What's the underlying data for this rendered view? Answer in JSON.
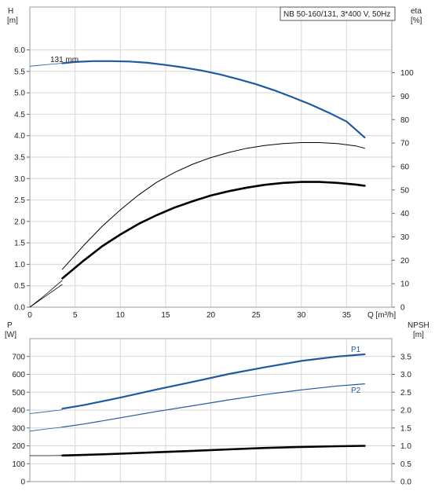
{
  "chart_data": [
    {
      "type": "line",
      "title": "NB 50-160/131, 3*400 V, 50Hz",
      "xlabel": "Q [m³/h]",
      "ylabel": "H\n[m]",
      "ylabel_right": "eta\n[%]",
      "xlim": [
        0,
        40
      ],
      "ylim": [
        0,
        7.0
      ],
      "ylim_right": [
        0,
        128
      ],
      "x_ticks": [
        "0",
        "5",
        "10",
        "15",
        "20",
        "25",
        "30",
        "35"
      ],
      "y_ticks": [
        "0.0",
        "0.5",
        "1.0",
        "1.5",
        "2.0",
        "2.5",
        "3.0",
        "3.5",
        "4.0",
        "4.5",
        "5.0",
        "5.5",
        "6.0"
      ],
      "y_right_ticks": [
        "0",
        "10",
        "20",
        "30",
        "40",
        "50",
        "60",
        "70",
        "80",
        "90",
        "100"
      ],
      "grid": true,
      "series": [
        {
          "name": "131 mm",
          "axis": "left",
          "color": "#1e5aa0",
          "thin_x": [
            0,
            1,
            2,
            3.6
          ],
          "thin_y": [
            5.62,
            5.64,
            5.66,
            5.69
          ],
          "x": [
            3.6,
            5,
            7,
            9,
            11,
            13,
            15,
            17,
            19,
            21,
            23,
            25,
            27,
            29,
            31,
            33,
            35,
            37
          ],
          "y": [
            5.69,
            5.72,
            5.74,
            5.74,
            5.73,
            5.7,
            5.65,
            5.59,
            5.52,
            5.43,
            5.32,
            5.2,
            5.06,
            4.9,
            4.73,
            4.54,
            4.33,
            3.96
          ]
        },
        {
          "name": "",
          "axis": "right",
          "color": "#000000",
          "stroke_width": 1,
          "thin_x": [
            0,
            1,
            2,
            3,
            3.6
          ],
          "thin_y": [
            0,
            3.0,
            6.2,
            9.5,
            11.5
          ],
          "x": [
            3.6,
            6,
            8,
            10,
            12,
            14,
            16,
            18,
            20,
            22,
            24,
            26,
            28,
            30,
            32,
            34,
            36,
            37
          ],
          "y": [
            16.2,
            26.5,
            34.5,
            41.5,
            47.8,
            53.2,
            57.5,
            61.0,
            63.8,
            66.0,
            67.8,
            69.0,
            69.8,
            70.2,
            70.2,
            69.8,
            68.8,
            67.8
          ]
        },
        {
          "name": "",
          "axis": "right",
          "color": "#000000",
          "stroke_width": 2.6,
          "thin_x": [
            0,
            1,
            2,
            3,
            3.6
          ],
          "thin_y": [
            0,
            2.7,
            5.4,
            8.1,
            9.7
          ],
          "x": [
            3.6,
            6,
            8,
            10,
            12,
            14,
            16,
            18,
            20,
            22,
            24,
            26,
            28,
            30,
            32,
            34,
            36,
            37
          ],
          "y": [
            12.3,
            20.0,
            26.0,
            31.0,
            35.5,
            39.2,
            42.5,
            45.2,
            47.6,
            49.5,
            51.0,
            52.2,
            53.0,
            53.4,
            53.4,
            53.0,
            52.3,
            51.8
          ]
        }
      ]
    },
    {
      "type": "line",
      "xlabel": "",
      "ylabel": "P\n[W]",
      "ylabel_right": "NPSH\n[m]",
      "xlim": [
        0,
        40
      ],
      "ylim": [
        0,
        800
      ],
      "ylim_right": [
        0,
        4.0
      ],
      "y_ticks": [
        "0",
        "100",
        "200",
        "300",
        "400",
        "500",
        "600",
        "700"
      ],
      "y_right_ticks": [
        "0.0",
        "0.5",
        "1.0",
        "1.5",
        "2.0",
        "2.5",
        "3.0",
        "3.5"
      ],
      "grid": true,
      "series": [
        {
          "name": "P1",
          "axis": "left",
          "color": "#1e5aa0",
          "stroke_width": 2.2,
          "thin_x": [
            0,
            1,
            2,
            3,
            3.6
          ],
          "thin_y": [
            380,
            386,
            392,
            398,
            402
          ],
          "x": [
            3.6,
            6,
            10,
            14,
            18,
            22,
            26,
            30,
            34,
            37
          ],
          "y": [
            408,
            428,
            470,
            515,
            558,
            602,
            640,
            675,
            700,
            712
          ]
        },
        {
          "name": "P2",
          "axis": "left",
          "color": "#1e5aa0",
          "stroke_width": 1.2,
          "thin_x": [
            0,
            1,
            2,
            3,
            3.6
          ],
          "thin_y": [
            282,
            289,
            295,
            301,
            305
          ],
          "x": [
            3.6,
            6,
            10,
            14,
            18,
            22,
            26,
            30,
            34,
            37
          ],
          "y": [
            305,
            322,
            357,
            392,
            424,
            457,
            487,
            513,
            535,
            547
          ]
        },
        {
          "name": "",
          "axis": "right",
          "color": "#000000",
          "stroke_width": 2.6,
          "thin_x": [
            0,
            1,
            2,
            3,
            3.6
          ],
          "thin_y": [
            0.725,
            0.725,
            0.725,
            0.728,
            0.73
          ],
          "x": [
            3.6,
            6,
            10,
            14,
            18,
            22,
            26,
            30,
            34,
            37
          ],
          "y": [
            0.73,
            0.745,
            0.78,
            0.82,
            0.86,
            0.9,
            0.94,
            0.97,
            0.99,
            1.0
          ]
        }
      ]
    }
  ]
}
